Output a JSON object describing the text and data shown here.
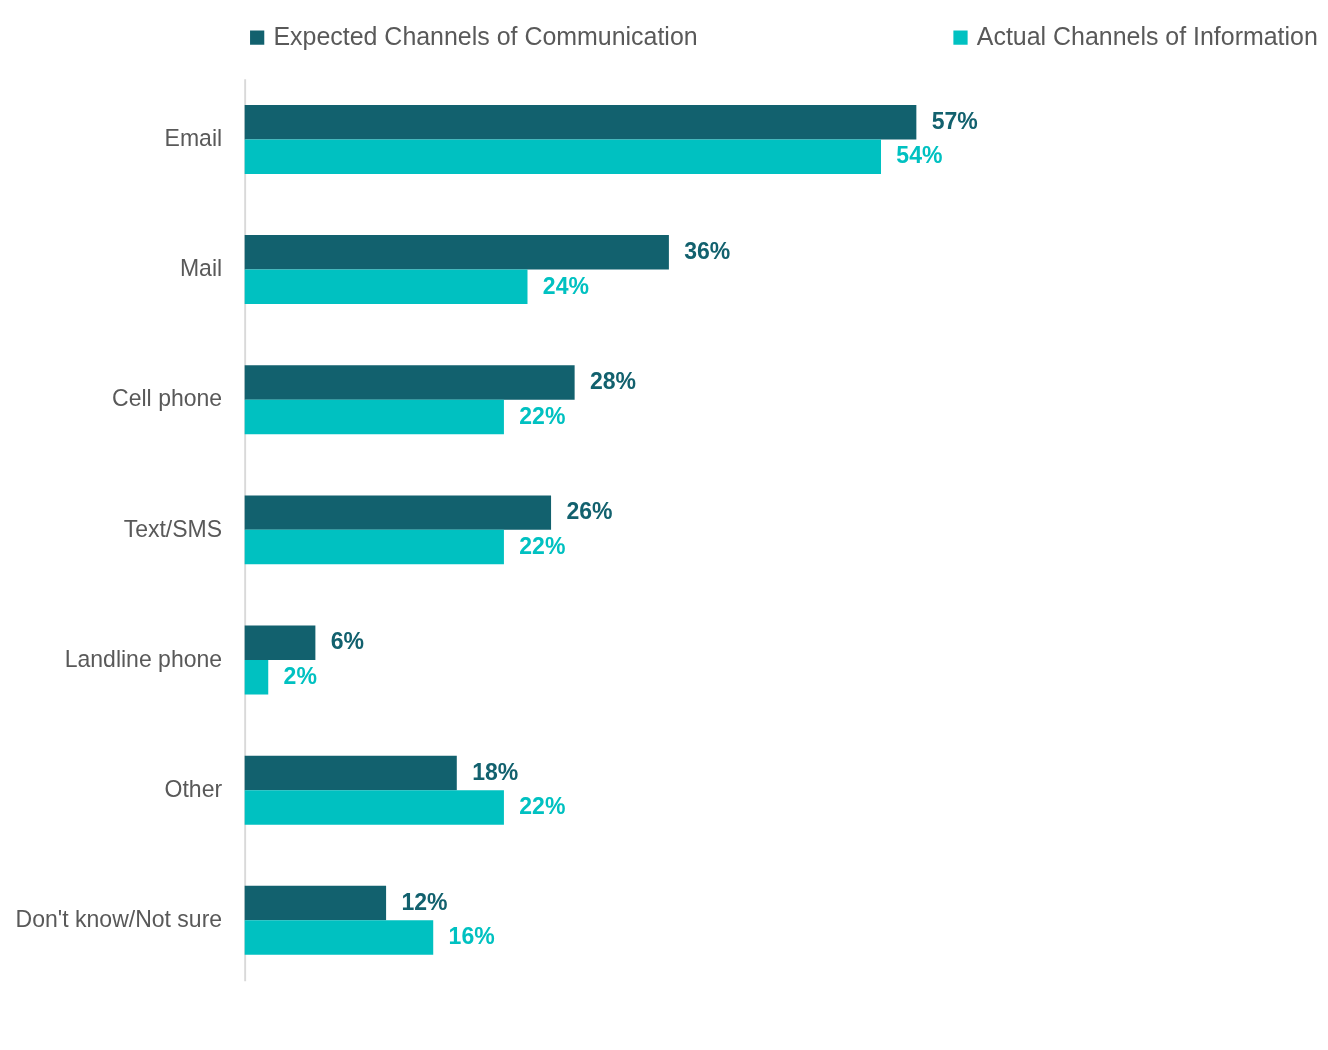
{
  "chart_data": {
    "type": "bar",
    "orientation": "horizontal",
    "legend": "top",
    "categories": [
      "Email",
      "Mail",
      "Cell phone",
      "Text/SMS",
      "Landline phone",
      "Other",
      "Don't know/Not sure"
    ],
    "series": [
      {
        "name": "Expected Channels of Communication",
        "color": "#12616e",
        "values": [
          57,
          36,
          28,
          26,
          6,
          18,
          12
        ],
        "value_labels": [
          "57%",
          "36%",
          "28%",
          "26%",
          "6%",
          "18%",
          "12%"
        ]
      },
      {
        "name": "Actual Channels of Information",
        "color": "#00c1c1",
        "values": [
          54,
          24,
          22,
          22,
          2,
          22,
          16
        ],
        "value_labels": [
          "54%",
          "24%",
          "22%",
          "22%",
          "2%",
          "22%",
          "16%"
        ]
      }
    ]
  }
}
